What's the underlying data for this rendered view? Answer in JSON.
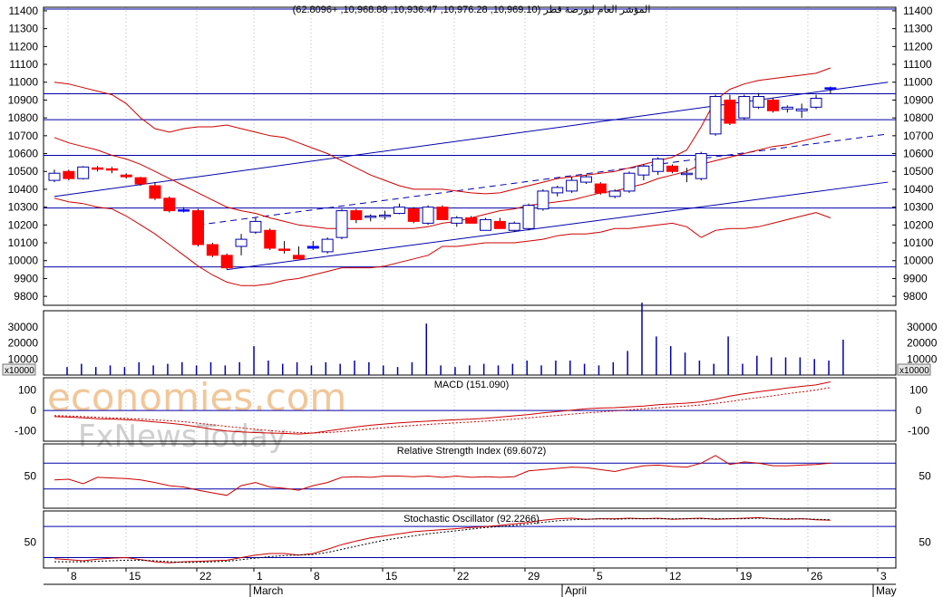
{
  "chart_data": {
    "type": "candlestick",
    "title": "المؤشر العام لبورصة قطر (10,969.10, 10,976.28, 10,936.47, 10,968.88, +62.8096)",
    "watermark": {
      "line1": "economies.com",
      "line2": "FxNewsToday"
    },
    "price_axis": {
      "ticks": [
        9800,
        9900,
        10000,
        10100,
        10200,
        10300,
        10400,
        10500,
        10600,
        10700,
        10800,
        10900,
        11000,
        11100,
        11200,
        11300,
        11400
      ],
      "labels": [
        "9800",
        "9900",
        "10000",
        "10100",
        "10200",
        "10300",
        "10400",
        "10500",
        "10600",
        "10700",
        "10800",
        "10900",
        "11000",
        "11100",
        "11200",
        "11300",
        "11400"
      ],
      "ylim": [
        9750,
        11420
      ],
      "horizontal_levels": [
        11410,
        10935,
        10790,
        10590,
        10295,
        9965
      ]
    },
    "x_axis": {
      "day_labels": [
        "8",
        "15",
        "22",
        "1",
        "8",
        "15",
        "22",
        "29",
        "5",
        "12",
        "19",
        "26",
        "3"
      ],
      "month_labels": [
        "March",
        "April",
        "May"
      ]
    },
    "candles": [
      {
        "o": 10450,
        "h": 10510,
        "l": 10440,
        "c": 10490
      },
      {
        "o": 10500,
        "h": 10510,
        "l": 10450,
        "c": 10460
      },
      {
        "o": 10460,
        "h": 10530,
        "l": 10455,
        "c": 10525
      },
      {
        "o": 10520,
        "h": 10530,
        "l": 10500,
        "c": 10515
      },
      {
        "o": 10515,
        "h": 10525,
        "l": 10490,
        "c": 10510
      },
      {
        "o": 10480,
        "h": 10490,
        "l": 10460,
        "c": 10470
      },
      {
        "o": 10465,
        "h": 10470,
        "l": 10420,
        "c": 10430
      },
      {
        "o": 10420,
        "h": 10440,
        "l": 10340,
        "c": 10350
      },
      {
        "o": 10350,
        "h": 10360,
        "l": 10270,
        "c": 10280
      },
      {
        "o": 10285,
        "h": 10300,
        "l": 10270,
        "c": 10280
      },
      {
        "o": 10280,
        "h": 10290,
        "l": 10080,
        "c": 10090
      },
      {
        "o": 10090,
        "h": 10100,
        "l": 10020,
        "c": 10030
      },
      {
        "o": 10030,
        "h": 10040,
        "l": 9950,
        "c": 9960
      },
      {
        "o": 10080,
        "h": 10150,
        "l": 10030,
        "c": 10120
      },
      {
        "o": 10160,
        "h": 10240,
        "l": 10150,
        "c": 10220
      },
      {
        "o": 10170,
        "h": 10180,
        "l": 10060,
        "c": 10070
      },
      {
        "o": 10065,
        "h": 10110,
        "l": 10040,
        "c": 10060
      },
      {
        "o": 10030,
        "h": 10080,
        "l": 10010,
        "c": 10010
      },
      {
        "o": 10080,
        "h": 10110,
        "l": 10060,
        "c": 10070
      },
      {
        "o": 10050,
        "h": 10130,
        "l": 10040,
        "c": 10120
      },
      {
        "o": 10130,
        "h": 10290,
        "l": 10120,
        "c": 10280
      },
      {
        "o": 10280,
        "h": 10290,
        "l": 10210,
        "c": 10230
      },
      {
        "o": 10250,
        "h": 10260,
        "l": 10220,
        "c": 10250
      },
      {
        "o": 10250,
        "h": 10280,
        "l": 10230,
        "c": 10255
      },
      {
        "o": 10265,
        "h": 10320,
        "l": 10260,
        "c": 10300
      },
      {
        "o": 10290,
        "h": 10300,
        "l": 10210,
        "c": 10220
      },
      {
        "o": 10210,
        "h": 10310,
        "l": 10200,
        "c": 10300
      },
      {
        "o": 10300,
        "h": 10310,
        "l": 10230,
        "c": 10230
      },
      {
        "o": 10210,
        "h": 10250,
        "l": 10190,
        "c": 10240
      },
      {
        "o": 10240,
        "h": 10250,
        "l": 10210,
        "c": 10210
      },
      {
        "o": 10170,
        "h": 10240,
        "l": 10170,
        "c": 10230
      },
      {
        "o": 10220,
        "h": 10240,
        "l": 10180,
        "c": 10180
      },
      {
        "o": 10170,
        "h": 10220,
        "l": 10160,
        "c": 10210
      },
      {
        "o": 10180,
        "h": 10320,
        "l": 10170,
        "c": 10310
      },
      {
        "o": 10290,
        "h": 10400,
        "l": 10280,
        "c": 10390
      },
      {
        "o": 10380,
        "h": 10420,
        "l": 10360,
        "c": 10410
      },
      {
        "o": 10390,
        "h": 10470,
        "l": 10380,
        "c": 10450
      },
      {
        "o": 10440,
        "h": 10480,
        "l": 10430,
        "c": 10470
      },
      {
        "o": 10430,
        "h": 10440,
        "l": 10370,
        "c": 10380
      },
      {
        "o": 10360,
        "h": 10400,
        "l": 10350,
        "c": 10390
      },
      {
        "o": 10390,
        "h": 10500,
        "l": 10380,
        "c": 10490
      },
      {
        "o": 10480,
        "h": 10540,
        "l": 10450,
        "c": 10530
      },
      {
        "o": 10500,
        "h": 10580,
        "l": 10480,
        "c": 10570
      },
      {
        "o": 10530,
        "h": 10540,
        "l": 10490,
        "c": 10500
      },
      {
        "o": 10490,
        "h": 10520,
        "l": 10440,
        "c": 10490
      },
      {
        "o": 10460,
        "h": 10610,
        "l": 10450,
        "c": 10600
      },
      {
        "o": 10710,
        "h": 10930,
        "l": 10700,
        "c": 10920
      },
      {
        "o": 10900,
        "h": 10930,
        "l": 10760,
        "c": 10770
      },
      {
        "o": 10800,
        "h": 10930,
        "l": 10790,
        "c": 10920
      },
      {
        "o": 10860,
        "h": 10940,
        "l": 10850,
        "c": 10920
      },
      {
        "o": 10900,
        "h": 10910,
        "l": 10830,
        "c": 10840
      },
      {
        "o": 10850,
        "h": 10870,
        "l": 10830,
        "c": 10860
      },
      {
        "o": 10840,
        "h": 10880,
        "l": 10800,
        "c": 10850
      },
      {
        "o": 10860,
        "h": 10930,
        "l": 10850,
        "c": 10910
      },
      {
        "o": 10969,
        "h": 10976,
        "l": 10936,
        "c": 10968
      }
    ],
    "bollinger": {
      "upper": [
        11000,
        10990,
        10970,
        10950,
        10930,
        10880,
        10800,
        10740,
        10720,
        10740,
        10750,
        10750,
        10760,
        10740,
        10720,
        10700,
        10690,
        10660,
        10630,
        10600,
        10560,
        10520,
        10480,
        10450,
        10420,
        10400,
        10400,
        10400,
        10390,
        10380,
        10375,
        10380,
        10400,
        10420,
        10440,
        10460,
        10470,
        10480,
        10490,
        10500,
        10520,
        10540,
        10560,
        10580,
        10620,
        10750,
        10900,
        10960,
        10990,
        11010,
        11020,
        11030,
        11040,
        11050,
        11080
      ],
      "middle": [
        10690,
        10660,
        10640,
        10620,
        10590,
        10570,
        10540,
        10500,
        10460,
        10420,
        10380,
        10340,
        10300,
        10280,
        10265,
        10240,
        10220,
        10200,
        10190,
        10180,
        10180,
        10180,
        10180,
        10180,
        10180,
        10180,
        10190,
        10210,
        10220,
        10240,
        10260,
        10280,
        10290,
        10310,
        10320,
        10330,
        10340,
        10360,
        10380,
        10390,
        10410,
        10430,
        10460,
        10480,
        10500,
        10540,
        10560,
        10580,
        10600,
        10620,
        10640,
        10650,
        10670,
        10690,
        10710
      ],
      "lower": [
        10350,
        10330,
        10320,
        10300,
        10290,
        10250,
        10200,
        10150,
        10090,
        10030,
        9970,
        9920,
        9880,
        9860,
        9860,
        9870,
        9890,
        9900,
        9920,
        9940,
        9960,
        9960,
        9960,
        9970,
        9990,
        10010,
        10030,
        10080,
        10080,
        10090,
        10100,
        10100,
        10100,
        10110,
        10120,
        10140,
        10150,
        10150,
        10160,
        10180,
        10180,
        10190,
        10200,
        10210,
        10190,
        10130,
        10170,
        10180,
        10180,
        10190,
        10210,
        10230,
        10250,
        10270,
        10240
      ]
    },
    "trendlines": [
      {
        "style": "solid",
        "from": [
          0,
          10360
        ],
        "to": [
          58,
          11000
        ]
      },
      {
        "style": "dashed",
        "from": [
          10,
          10200
        ],
        "to": [
          58,
          10710
        ]
      },
      {
        "style": "solid",
        "from": [
          12,
          9950
        ],
        "to": [
          58,
          10440
        ]
      }
    ],
    "volume": {
      "unit_label": "x10000",
      "ticks": [
        10000,
        20000,
        30000
      ],
      "labels": [
        "10000",
        "20000",
        "30000"
      ],
      "ylim": [
        0,
        40000
      ],
      "values": [
        5000,
        7000,
        5000,
        6000,
        5000,
        8000,
        6000,
        7000,
        8000,
        6000,
        8000,
        6000,
        8000,
        18000,
        9000,
        7000,
        8000,
        6000,
        8000,
        7000,
        9000,
        8000,
        6000,
        5000,
        8000,
        32000,
        6000,
        5000,
        6000,
        7000,
        6000,
        7000,
        9000,
        6000,
        9000,
        9000,
        7000,
        6000,
        8000,
        15000,
        45000,
        24000,
        18000,
        14000,
        9000,
        7000,
        24000,
        7000,
        12000,
        11000,
        11000,
        11000,
        10000,
        9000,
        22000
      ]
    },
    "macd": {
      "label": "MACD (151.090)",
      "ticks": [
        -100,
        0,
        100
      ],
      "labels": [
        "-100",
        "0",
        "100"
      ],
      "ylim": [
        -150,
        160
      ],
      "macd": [
        -30,
        -32,
        -36,
        -40,
        -42,
        -45,
        -50,
        -56,
        -62,
        -70,
        -80,
        -92,
        -100,
        -105,
        -108,
        -110,
        -112,
        -115,
        -110,
        -100,
        -90,
        -80,
        -72,
        -66,
        -60,
        -56,
        -52,
        -48,
        -45,
        -42,
        -38,
        -32,
        -26,
        -20,
        -12,
        -5,
        2,
        8,
        12,
        14,
        18,
        22,
        28,
        32,
        36,
        42,
        55,
        70,
        82,
        92,
        100,
        110,
        118,
        125,
        140
      ],
      "signal": [
        -25,
        -27,
        -30,
        -33,
        -36,
        -39,
        -42,
        -46,
        -50,
        -55,
        -62,
        -70,
        -78,
        -85,
        -92,
        -98,
        -104,
        -108,
        -110,
        -108,
        -103,
        -97,
        -90,
        -84,
        -78,
        -73,
        -68,
        -64,
        -60,
        -56,
        -52,
        -47,
        -42,
        -36,
        -30,
        -24,
        -18,
        -12,
        -7,
        -2,
        3,
        8,
        13,
        18,
        22,
        27,
        35,
        44,
        54,
        63,
        72,
        82,
        91,
        100,
        112
      ]
    },
    "rsi": {
      "label": "Relative Strength Index (69.6072)",
      "ticks": [
        50
      ],
      "labels": [
        "50"
      ],
      "ylim": [
        0,
        100
      ],
      "levels": [
        70,
        30
      ],
      "values": [
        44,
        45,
        38,
        48,
        47,
        46,
        44,
        40,
        35,
        33,
        28,
        24,
        20,
        35,
        40,
        33,
        31,
        28,
        35,
        40,
        48,
        49,
        48,
        50,
        50,
        49,
        50,
        48,
        50,
        48,
        49,
        48,
        49,
        58,
        60,
        62,
        64,
        63,
        60,
        57,
        62,
        66,
        67,
        65,
        64,
        70,
        82,
        68,
        72,
        70,
        66,
        66,
        67,
        68,
        70
      ]
    },
    "stochastic": {
      "label": "Stochastic Oscillator (92.2266)",
      "ticks": [
        50
      ],
      "labels": [
        "50"
      ],
      "ylim": [
        0,
        110
      ],
      "levels": [
        80,
        20
      ],
      "k": [
        18,
        16,
        14,
        17,
        19,
        20,
        16,
        12,
        10,
        12,
        13,
        14,
        15,
        20,
        25,
        28,
        28,
        25,
        28,
        36,
        45,
        52,
        58,
        62,
        66,
        70,
        72,
        74,
        76,
        78,
        80,
        82,
        85,
        88,
        92,
        95,
        96,
        94,
        95,
        95,
        96,
        95,
        96,
        94,
        95,
        96,
        94,
        95,
        96,
        97,
        95,
        94,
        95,
        93,
        92
      ],
      "d": [
        12,
        12,
        12,
        13,
        14,
        15,
        15,
        14,
        12,
        11,
        11,
        12,
        13,
        16,
        19,
        22,
        24,
        25,
        26,
        30,
        36,
        42,
        48,
        54,
        58,
        62,
        66,
        69,
        72,
        75,
        78,
        80,
        82,
        85,
        88,
        91,
        93,
        94,
        95,
        94,
        95,
        95,
        95,
        95,
        95,
        95,
        95,
        95,
        95,
        96,
        95,
        95,
        95,
        94,
        93
      ]
    }
  }
}
